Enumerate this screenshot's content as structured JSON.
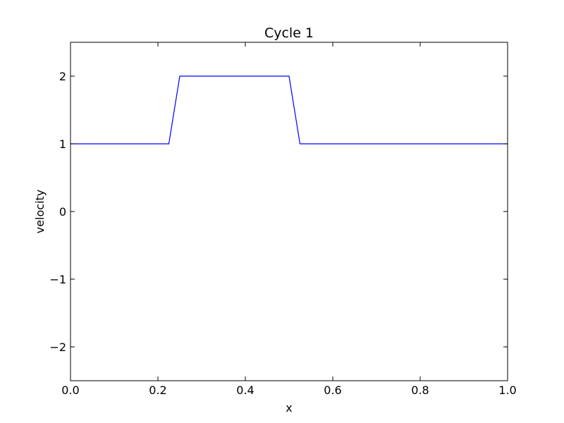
{
  "chart_data": {
    "type": "line",
    "title": "Cycle 1",
    "xlabel": "x",
    "ylabel": "velocity",
    "xlim": [
      0.0,
      1.0
    ],
    "ylim": [
      -2.5,
      2.5
    ],
    "grid": false,
    "x_ticks": [
      "0.0",
      "0.2",
      "0.4",
      "0.6",
      "0.8",
      "1.0"
    ],
    "y_ticks": [
      "−2",
      "−1",
      "0",
      "1",
      "2"
    ],
    "series": [
      {
        "color": "#0000ff",
        "points": [
          {
            "x": 0.0,
            "y": 1
          },
          {
            "x": 0.225,
            "y": 1
          },
          {
            "x": 0.25,
            "y": 2
          },
          {
            "x": 0.5,
            "y": 2
          },
          {
            "x": 0.525,
            "y": 1
          },
          {
            "x": 1.0,
            "y": 1
          }
        ]
      }
    ]
  }
}
